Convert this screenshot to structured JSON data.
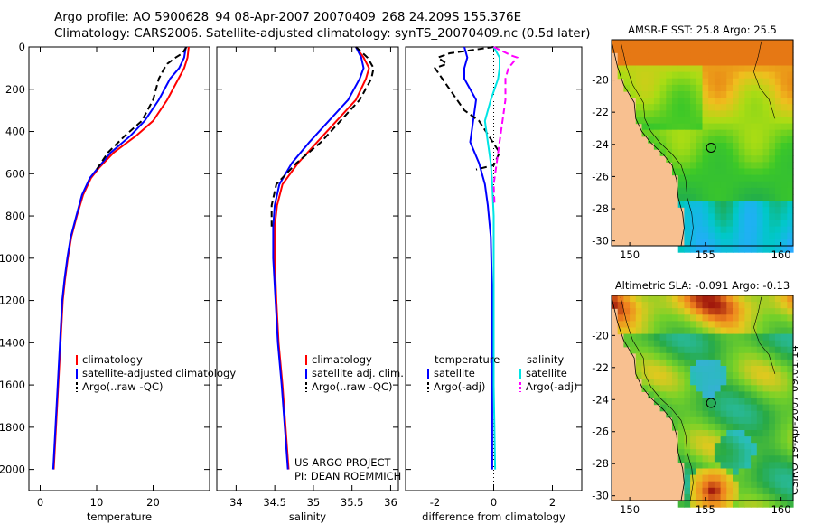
{
  "title_line1": "Argo profile: AO 5900628_94 08-Apr-2007 20070409_268 24.209S 155.376E",
  "title_line2": "Climatology: CARS2006. Satellite-adjusted climatology: synTS_20070409.nc (0.5d later)",
  "stamp": "CSIRO 19-Apr-2007 09:01:14",
  "colors": {
    "climatology": "#ff0000",
    "satellite": "#0000ff",
    "argo": "#000000",
    "sal_satellite": "#00e5e5",
    "sal_argo": "#ff00ff",
    "land": "#f8c090"
  },
  "chart_data": [
    {
      "type": "line",
      "id": "temperature",
      "xlabel": "temperature",
      "ylabel": "",
      "xlim": [
        -2,
        30
      ],
      "ylim": [
        2100,
        0
      ],
      "xticks": [
        "0",
        "10",
        "20"
      ],
      "yticks": [
        "0",
        "200",
        "400",
        "600",
        "800",
        "1000",
        "1200",
        "1400",
        "1600",
        "1800",
        "2000"
      ],
      "legend": [
        "climatology",
        "satellite-adjusted climatology",
        "Argo(..raw -QC)"
      ],
      "series": [
        {
          "name": "climatology",
          "points": [
            [
              26.3,
              0
            ],
            [
              26.1,
              50
            ],
            [
              25.5,
              100
            ],
            [
              24.5,
              150
            ],
            [
              22.5,
              250
            ],
            [
              20,
              350
            ],
            [
              17,
              420
            ],
            [
              13,
              500
            ],
            [
              10.5,
              570
            ],
            [
              9,
              620
            ],
            [
              7.6,
              700
            ],
            [
              6.5,
              800
            ],
            [
              5.5,
              900
            ],
            [
              4.9,
              1000
            ],
            [
              4.4,
              1100
            ],
            [
              4,
              1200
            ],
            [
              3.6,
              1400
            ],
            [
              3.2,
              1600
            ],
            [
              2.8,
              1800
            ],
            [
              2.4,
              2000
            ]
          ]
        },
        {
          "name": "satellite-adjusted climatology",
          "points": [
            [
              25.8,
              0
            ],
            [
              25.5,
              50
            ],
            [
              24.6,
              100
            ],
            [
              23,
              150
            ],
            [
              21,
              250
            ],
            [
              18.5,
              350
            ],
            [
              16,
              420
            ],
            [
              12.5,
              500
            ],
            [
              10.3,
              570
            ],
            [
              8.8,
              620
            ],
            [
              7.4,
              700
            ],
            [
              6.4,
              800
            ],
            [
              5.4,
              900
            ],
            [
              4.8,
              1000
            ],
            [
              4.3,
              1100
            ],
            [
              3.9,
              1200
            ],
            [
              3.5,
              1400
            ],
            [
              3.1,
              1600
            ],
            [
              2.7,
              1800
            ],
            [
              2.3,
              2000
            ]
          ]
        },
        {
          "name": "Argo(..raw -QC)",
          "points": [
            [
              25.9,
              0
            ],
            [
              25.2,
              30
            ],
            [
              24,
              50
            ],
            [
              22.5,
              80
            ],
            [
              22,
              100
            ],
            [
              21,
              150
            ],
            [
              20,
              250
            ],
            [
              18,
              350
            ],
            [
              15,
              420
            ],
            [
              12,
              500
            ],
            [
              10,
              580
            ]
          ]
        }
      ]
    },
    {
      "type": "line",
      "id": "salinity",
      "xlabel": "salinity",
      "ylabel": "",
      "xlim": [
        33.75,
        36.1
      ],
      "ylim": [
        2100,
        0
      ],
      "xticks": [
        "34",
        "34.5",
        "35",
        "35.5",
        "36"
      ],
      "legend": [
        "climatology",
        "satellite adj. clim.",
        "Argo(..raw -QC)"
      ],
      "annotation": [
        "US ARGO PROJECT",
        "PI: DEAN ROEMMICH"
      ],
      "series": [
        {
          "name": "climatology",
          "points": [
            [
              35.55,
              0
            ],
            [
              35.65,
              50
            ],
            [
              35.72,
              100
            ],
            [
              35.68,
              150
            ],
            [
              35.55,
              250
            ],
            [
              35.3,
              350
            ],
            [
              35.05,
              450
            ],
            [
              34.8,
              550
            ],
            [
              34.6,
              650
            ],
            [
              34.53,
              750
            ],
            [
              34.5,
              850
            ],
            [
              34.5,
              1000
            ],
            [
              34.52,
              1200
            ],
            [
              34.55,
              1400
            ],
            [
              34.6,
              1600
            ],
            [
              34.64,
              1800
            ],
            [
              34.68,
              2000
            ]
          ]
        },
        {
          "name": "satellite adj. clim.",
          "points": [
            [
              35.55,
              0
            ],
            [
              35.62,
              50
            ],
            [
              35.65,
              100
            ],
            [
              35.6,
              150
            ],
            [
              35.45,
              250
            ],
            [
              35.2,
              350
            ],
            [
              34.95,
              450
            ],
            [
              34.72,
              550
            ],
            [
              34.56,
              650
            ],
            [
              34.5,
              750
            ],
            [
              34.48,
              850
            ],
            [
              34.48,
              1000
            ],
            [
              34.51,
              1200
            ],
            [
              34.54,
              1400
            ],
            [
              34.59,
              1600
            ],
            [
              34.63,
              1800
            ],
            [
              34.67,
              2000
            ]
          ]
        },
        {
          "name": "Argo(..raw -QC)",
          "points": [
            [
              35.55,
              0
            ],
            [
              35.7,
              50
            ],
            [
              35.78,
              100
            ],
            [
              35.75,
              150
            ],
            [
              35.6,
              250
            ],
            [
              35.35,
              350
            ],
            [
              35.1,
              450
            ],
            [
              34.78,
              550
            ],
            [
              34.52,
              650
            ],
            [
              34.46,
              750
            ],
            [
              34.46,
              850
            ]
          ]
        }
      ]
    },
    {
      "type": "line",
      "id": "difference",
      "xlabel": "difference from climatology",
      "ylabel": "",
      "xlim": [
        -3,
        3
      ],
      "ylim": [
        2100,
        0
      ],
      "xticks": [
        "-2",
        "0",
        "2"
      ],
      "legend_temperature": [
        "temperature",
        "satellite",
        "Argo(-adj)"
      ],
      "legend_salinity": [
        "salinity",
        "satellite",
        "Argo(-adj)"
      ],
      "series": [
        {
          "name": "temperature satellite",
          "points": [
            [
              -1,
              0
            ],
            [
              -0.9,
              50
            ],
            [
              -1,
              100
            ],
            [
              -1,
              150
            ],
            [
              -0.6,
              250
            ],
            [
              -0.7,
              350
            ],
            [
              -0.8,
              450
            ],
            [
              -0.5,
              550
            ],
            [
              -0.3,
              650
            ],
            [
              -0.2,
              750
            ],
            [
              -0.1,
              900
            ],
            [
              -0.05,
              1200
            ],
            [
              -0.05,
              1600
            ],
            [
              -0.05,
              2000
            ]
          ]
        },
        {
          "name": "temperature Argo(-adj)",
          "points": [
            [
              0,
              0
            ],
            [
              -1.5,
              30
            ],
            [
              -1.9,
              50
            ],
            [
              -1.6,
              80
            ],
            [
              -2,
              100
            ],
            [
              -1.5,
              200
            ],
            [
              -1,
              300
            ],
            [
              -0.5,
              350
            ],
            [
              0.2,
              500
            ],
            [
              0,
              560
            ],
            [
              -0.6,
              580
            ]
          ]
        },
        {
          "name": "salinity satellite",
          "points": [
            [
              0,
              0
            ],
            [
              0.2,
              50
            ],
            [
              0.2,
              100
            ],
            [
              0.15,
              150
            ],
            [
              -0.1,
              250
            ],
            [
              -0.3,
              350
            ],
            [
              -0.2,
              450
            ],
            [
              -0.1,
              550
            ],
            [
              -0.05,
              650
            ],
            [
              0,
              800
            ],
            [
              0,
              1200
            ],
            [
              0,
              1600
            ],
            [
              0.05,
              2000
            ]
          ]
        },
        {
          "name": "salinity Argo(-adj)",
          "points": [
            [
              0,
              0
            ],
            [
              0.6,
              40
            ],
            [
              0.8,
              50
            ],
            [
              0.5,
              100
            ],
            [
              0.4,
              150
            ],
            [
              0.4,
              250
            ],
            [
              0.3,
              350
            ],
            [
              0.2,
              450
            ],
            [
              0.1,
              550
            ],
            [
              0,
              650
            ],
            [
              0.03,
              750
            ]
          ]
        }
      ]
    },
    {
      "type": "heatmap",
      "id": "sst-map",
      "title": "AMSR-E SST: 25.8  Argo: 25.5",
      "xlim": [
        148.8,
        160.8
      ],
      "ylim": [
        -30.3,
        -17.5
      ],
      "xticks": [
        "150",
        "155",
        "160"
      ],
      "yticks": [
        "-20",
        "-22",
        "-24",
        "-26",
        "-28",
        "-30"
      ],
      "marker": [
        155.376,
        -24.209
      ]
    },
    {
      "type": "heatmap",
      "id": "sla-map",
      "title": "Altimetric SLA: -0.091  Argo: -0.13",
      "xlim": [
        148.8,
        160.8
      ],
      "ylim": [
        -30.3,
        -17.5
      ],
      "xticks": [
        "150",
        "155",
        "160"
      ],
      "yticks": [
        "-20",
        "-22",
        "-24",
        "-26",
        "-28",
        "-30"
      ],
      "marker": [
        155.376,
        -24.209
      ]
    }
  ]
}
